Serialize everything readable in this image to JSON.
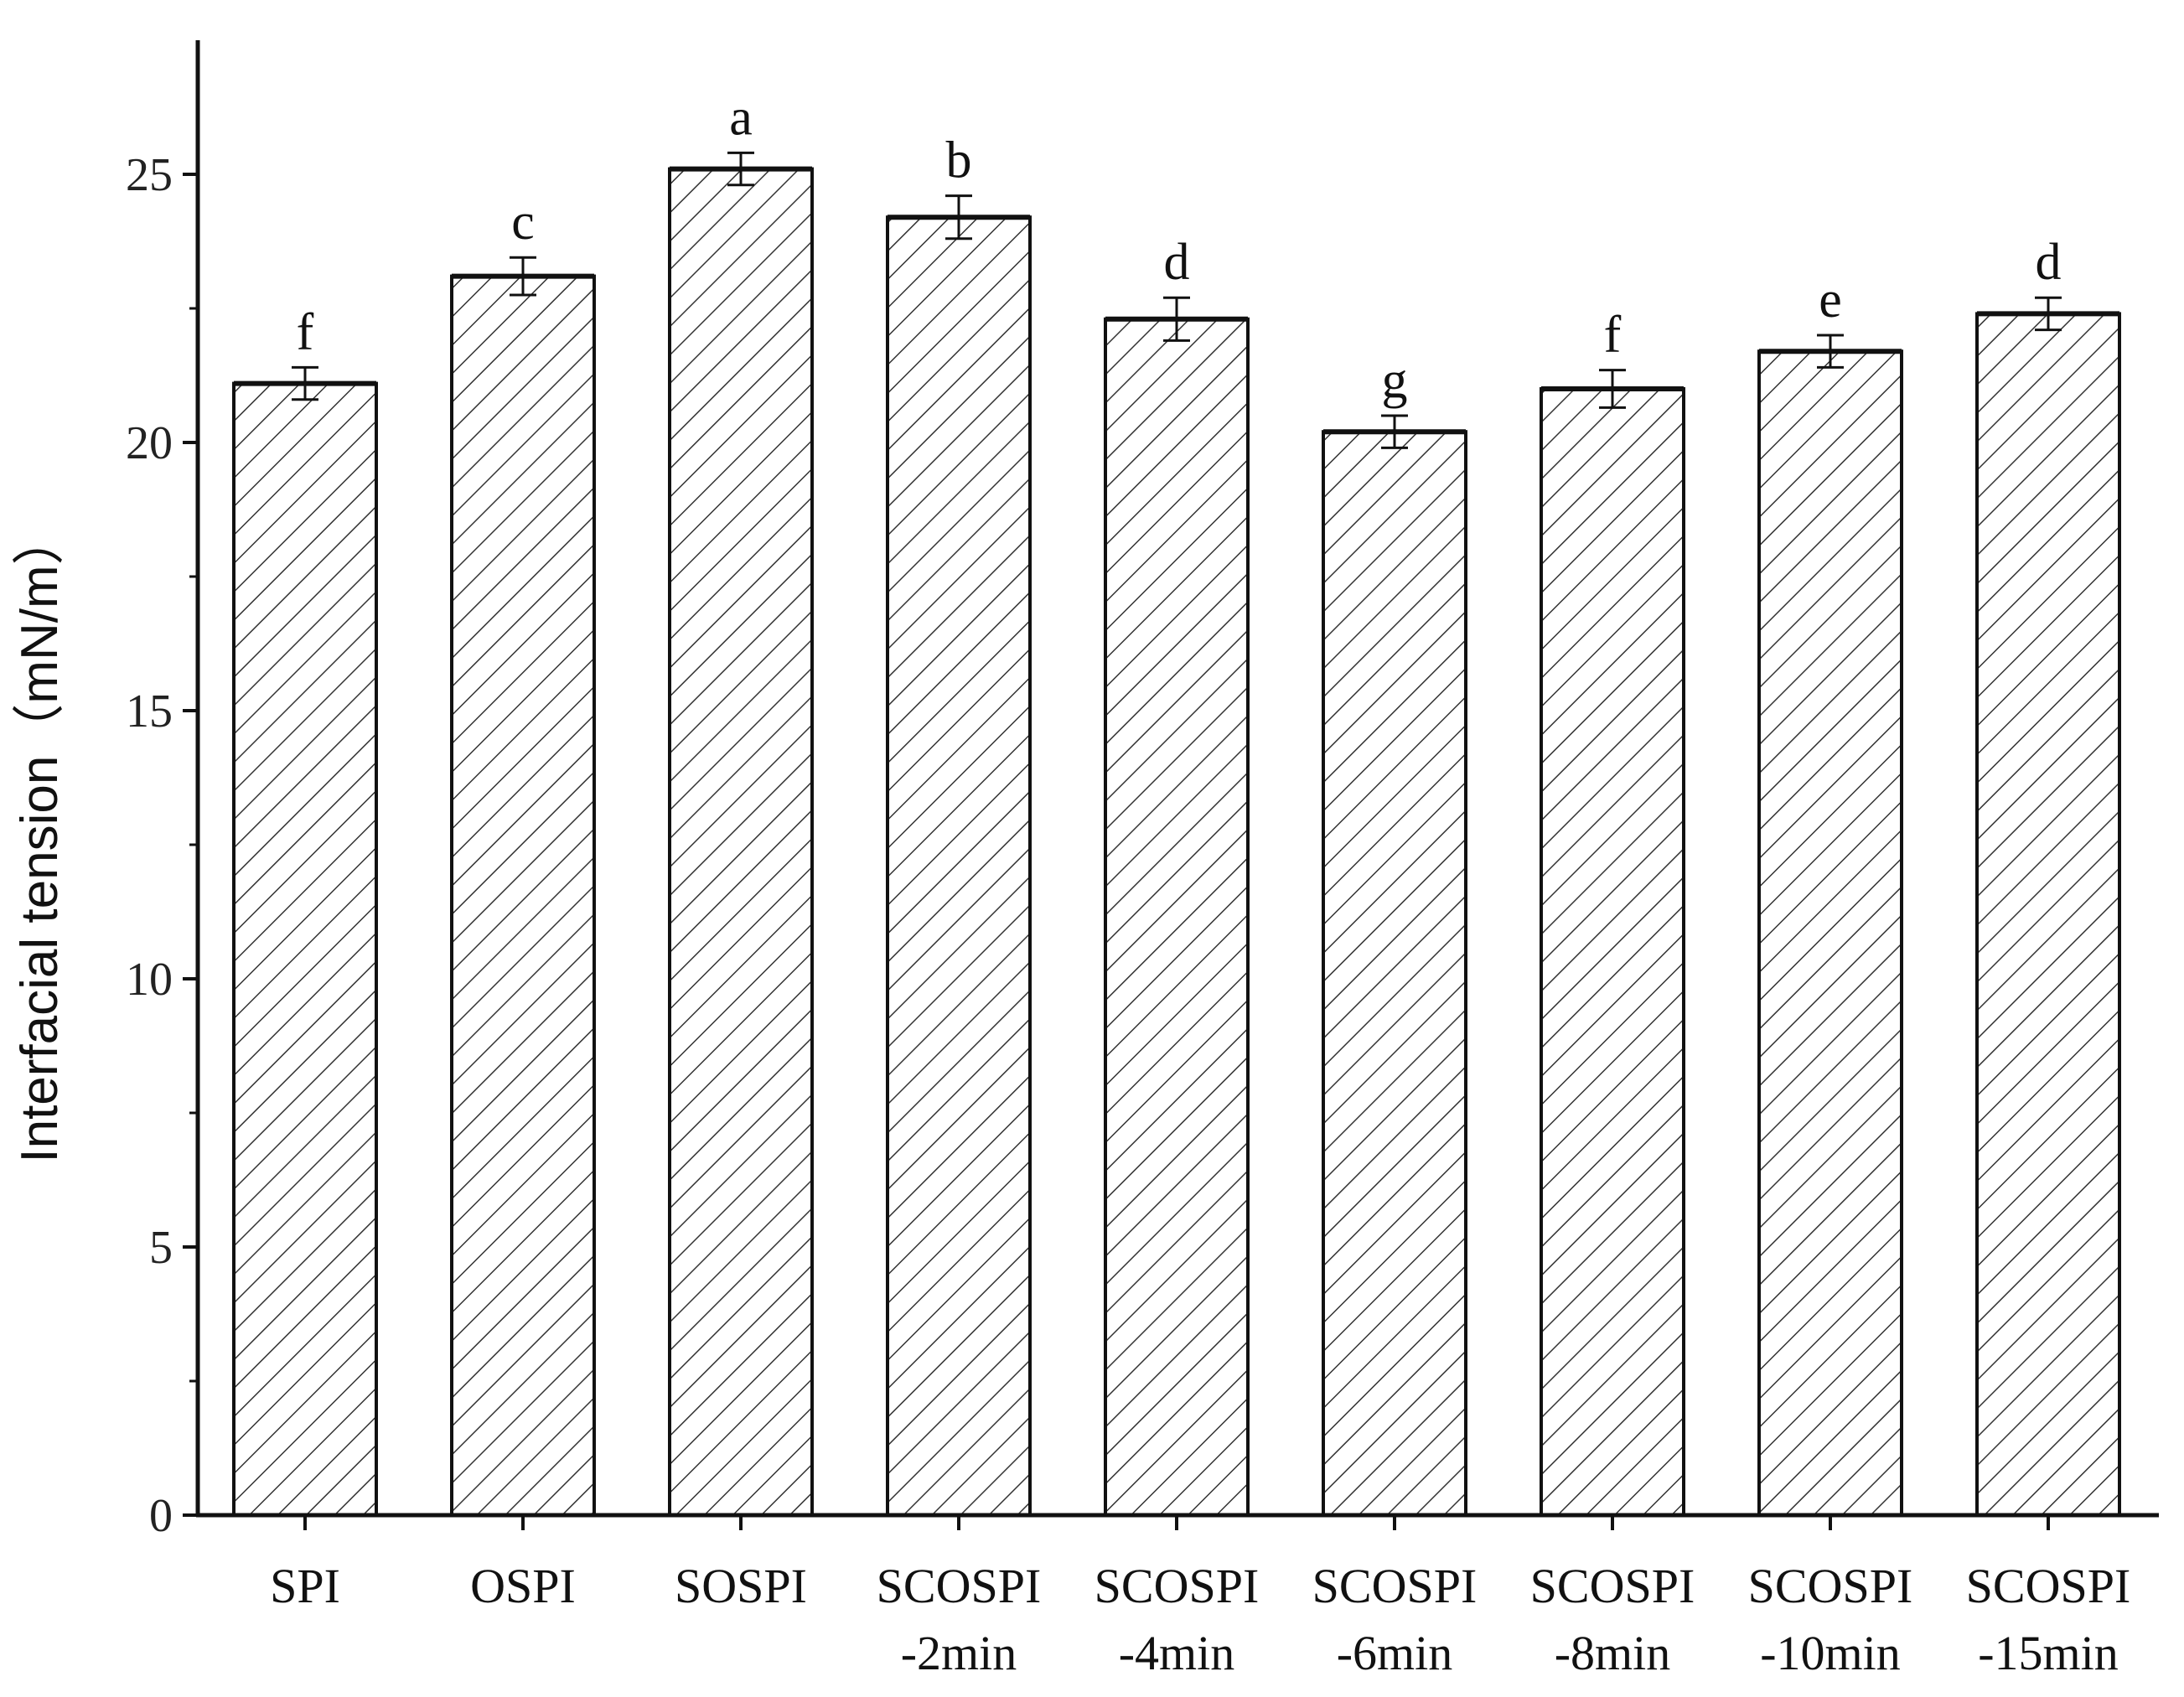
{
  "chart_data": {
    "type": "bar",
    "title": "",
    "xlabel": "",
    "ylabel": "Interfacial tension（mN/m）",
    "ylim": [
      0,
      27.5
    ],
    "yticks": [
      0,
      5,
      10,
      15,
      20,
      25
    ],
    "grid": false,
    "categories": [
      [
        "SPI"
      ],
      [
        "OSPI"
      ],
      [
        "SOSPI"
      ],
      [
        "SCOSPI",
        "-2min"
      ],
      [
        "SCOSPI",
        "-4min"
      ],
      [
        "SCOSPI",
        "-6min"
      ],
      [
        "SCOSPI",
        "-8min"
      ],
      [
        "SCOSPI",
        "-10min"
      ],
      [
        "SCOSPI",
        "-15min"
      ]
    ],
    "values": [
      21.1,
      23.1,
      25.1,
      24.2,
      22.3,
      20.2,
      21.0,
      21.7,
      22.4
    ],
    "errors": [
      0.3,
      0.35,
      0.3,
      0.4,
      0.4,
      0.3,
      0.35,
      0.3,
      0.3
    ],
    "significance": [
      "f",
      "c",
      "a",
      "b",
      "d",
      "g",
      "f",
      "e",
      "d"
    ],
    "bar_fill": "hatched",
    "colors": {
      "bar_stroke": "#111111",
      "hatch": "#333333",
      "axis": "#111111"
    }
  }
}
